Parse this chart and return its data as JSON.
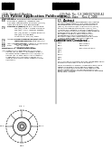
{
  "background_color": "#ffffff",
  "title_left": "United States",
  "title_pub": "Patent Application Publication",
  "pub_no": "Pub. No.: US 2008/0274508 A1",
  "pub_date_label": "Pub. Date:",
  "pub_date": "Nov. 6, 2008",
  "barcode_color": "#000000",
  "text_color": "#333333",
  "diagram_present": true
}
